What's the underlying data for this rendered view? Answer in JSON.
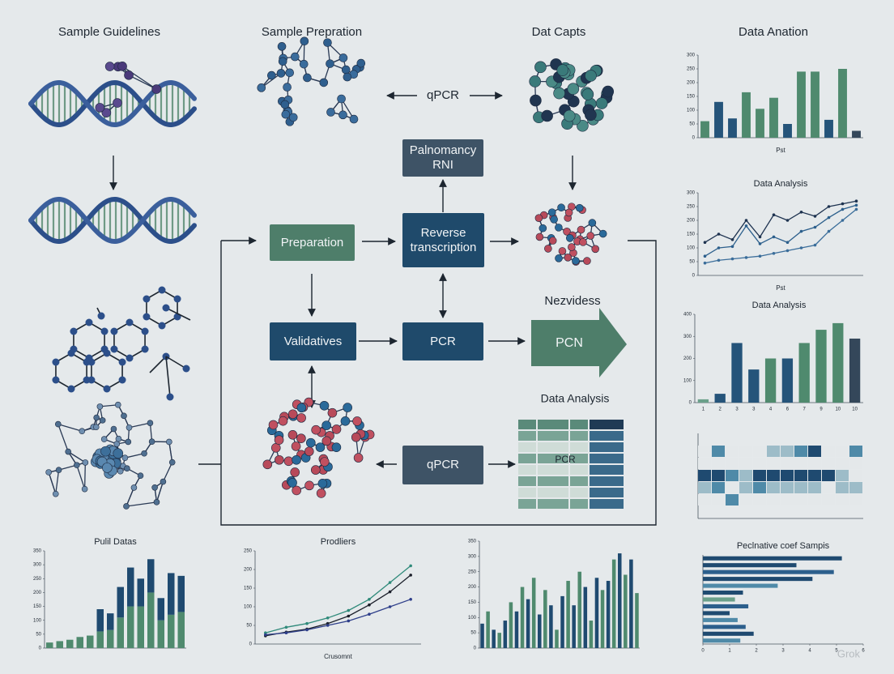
{
  "headings": [
    "Sample Guidelines",
    "Sample Prepration",
    "Dat Capts",
    "Data Anation"
  ],
  "flow": {
    "top_qpcr": "qPCR",
    "rna": "Palnomancy RNI",
    "preparation": "Preparation",
    "reverse": "Reverse transcription",
    "validatives": "Validatives",
    "pcr": "PCR",
    "next_label": "Nezvidess",
    "pcn": "PCN",
    "analysis_label": "Data Analysis",
    "bottom_qpcr": "qPCR",
    "table_cell": "PCR"
  },
  "charts": [
    {
      "type": "bar",
      "x_label": "Pst",
      "ylim": [
        0,
        300
      ],
      "yticks": [
        0,
        50,
        100,
        150,
        200,
        250,
        300
      ],
      "values": [
        60,
        130,
        70,
        165,
        105,
        145,
        50,
        240,
        240,
        65,
        250,
        25
      ],
      "colors": [
        "#4f8a6e",
        "#25547a",
        "#25547a",
        "#4f8a6e",
        "#4f8a6e",
        "#4f8a6e",
        "#25547a",
        "#4f8a6e",
        "#4f8a6e",
        "#25547a",
        "#4f8a6e",
        "#34475a"
      ]
    },
    {
      "type": "line",
      "title": "Data Analysis",
      "x_label": "Pst",
      "ylim": [
        0,
        300
      ],
      "yticks": [
        0,
        50,
        100,
        150,
        200,
        250,
        300
      ],
      "series": [
        {
          "color": "#1e3350",
          "values": [
            120,
            150,
            130,
            200,
            140,
            220,
            200,
            230,
            215,
            250,
            260,
            270
          ]
        },
        {
          "color": "#2c5f8c",
          "values": [
            70,
            100,
            105,
            180,
            115,
            140,
            120,
            160,
            175,
            210,
            240,
            255
          ]
        },
        {
          "color": "#3a6d9a",
          "values": [
            45,
            55,
            60,
            65,
            70,
            80,
            90,
            100,
            110,
            160,
            200,
            240
          ]
        }
      ]
    },
    {
      "type": "bar",
      "title": "Data Analysis",
      "ylim": [
        0,
        400
      ],
      "yticks": [
        0,
        100,
        200,
        300,
        400
      ],
      "categories": [
        "1",
        "2",
        "3",
        "3",
        "4",
        "6",
        "7",
        "9",
        "10",
        "10"
      ],
      "values": [
        15,
        40,
        270,
        150,
        200,
        200,
        270,
        330,
        360,
        290
      ],
      "colors": [
        "#6aa08a",
        "#25547a",
        "#25547a",
        "#25547a",
        "#4f8a6e",
        "#25547a",
        "#4f8a6e",
        "#4f8a6e",
        "#4f8a6e",
        "#34475a"
      ]
    },
    {
      "type": "heat",
      "palette": [
        "#e4e8ea",
        "#9dbcc8",
        "#4f8aa8",
        "#1f4a70"
      ],
      "matrix": [
        [
          0,
          2,
          0,
          0,
          0,
          1,
          1,
          2,
          3,
          0,
          0,
          2
        ],
        [
          0,
          0,
          0,
          0,
          0,
          0,
          0,
          0,
          0,
          0,
          0,
          0
        ],
        [
          3,
          3,
          2,
          1,
          3,
          3,
          3,
          3,
          3,
          3,
          1,
          0
        ],
        [
          1,
          2,
          0,
          1,
          2,
          1,
          1,
          1,
          1,
          0,
          1,
          1
        ],
        [
          0,
          0,
          2,
          0,
          0,
          0,
          0,
          0,
          0,
          0,
          0,
          0
        ]
      ]
    },
    {
      "type": "hbar",
      "title": "Peclnative coef Sampis",
      "xlim": [
        0,
        6
      ],
      "xticks": [
        0,
        1,
        2,
        3,
        4,
        5,
        6
      ],
      "values": [
        5.2,
        3.5,
        4.9,
        4.1,
        2.8,
        1.5,
        1.2,
        1.7,
        1.0,
        1.3,
        1.6,
        1.9,
        1.4
      ],
      "colors": [
        "#1f4a70",
        "#1f4a70",
        "#2c5f8c",
        "#1f4a70",
        "#4f8aa8",
        "#1f4a70",
        "#6aa08a",
        "#2c5f8c",
        "#1f4a70",
        "#4f8aa8",
        "#2c5f8c",
        "#1f4a70",
        "#4f8aa8"
      ]
    },
    {
      "type": "stacked",
      "title": "Pulil Datas",
      "ylim": [
        0,
        350
      ],
      "yticks": [
        0,
        50,
        100,
        150,
        200,
        250,
        300,
        350
      ],
      "series": [
        {
          "color": "#4f8a6e",
          "values": [
            20,
            25,
            30,
            40,
            45,
            60,
            65,
            110,
            150,
            150,
            200,
            100,
            120,
            130
          ]
        },
        {
          "color": "#1f4a70",
          "values": [
            0,
            0,
            0,
            0,
            0,
            80,
            60,
            110,
            140,
            100,
            120,
            80,
            150,
            130
          ]
        }
      ]
    },
    {
      "type": "line",
      "title": "Prodliers",
      "x_label": "Crusomnt",
      "ylim": [
        0,
        250
      ],
      "yticks": [
        0,
        50,
        100,
        150,
        200,
        250
      ],
      "series": [
        {
          "color": "#2f8a7a",
          "values": [
            30,
            45,
            55,
            70,
            90,
            120,
            165,
            210
          ]
        },
        {
          "color": "#1b1f2a",
          "values": [
            22,
            32,
            40,
            55,
            75,
            105,
            140,
            185
          ]
        },
        {
          "color": "#2e3f8a",
          "values": [
            25,
            30,
            38,
            50,
            62,
            80,
            100,
            120
          ]
        }
      ]
    },
    {
      "type": "bar",
      "ylim": [
        0,
        350
      ],
      "yticks": [
        0,
        50,
        100,
        150,
        200,
        250,
        300,
        350
      ],
      "values": [
        80,
        120,
        60,
        50,
        90,
        150,
        120,
        200,
        160,
        230,
        110,
        190,
        140,
        60,
        170,
        220,
        140,
        250,
        200,
        90,
        230,
        190,
        220,
        290,
        310,
        240,
        290,
        180
      ],
      "colors": [
        "#1f4a70",
        "#4f8a6e",
        "#1f4a70",
        "#4f8a6e",
        "#1f4a70",
        "#4f8a6e",
        "#1f4a70",
        "#4f8a6e",
        "#1f4a70",
        "#4f8a6e",
        "#1f4a70",
        "#4f8a6e",
        "#1f4a70",
        "#4f8a6e",
        "#1f4a70",
        "#4f8a6e",
        "#1f4a70",
        "#4f8a6e",
        "#1f4a70",
        "#4f8a6e",
        "#1f4a70",
        "#4f8a6e",
        "#1f4a70",
        "#4f8a6e",
        "#1f4a70",
        "#4f8a6e",
        "#1f4a70",
        "#4f8a6e"
      ]
    }
  ],
  "watermark": "Grok"
}
